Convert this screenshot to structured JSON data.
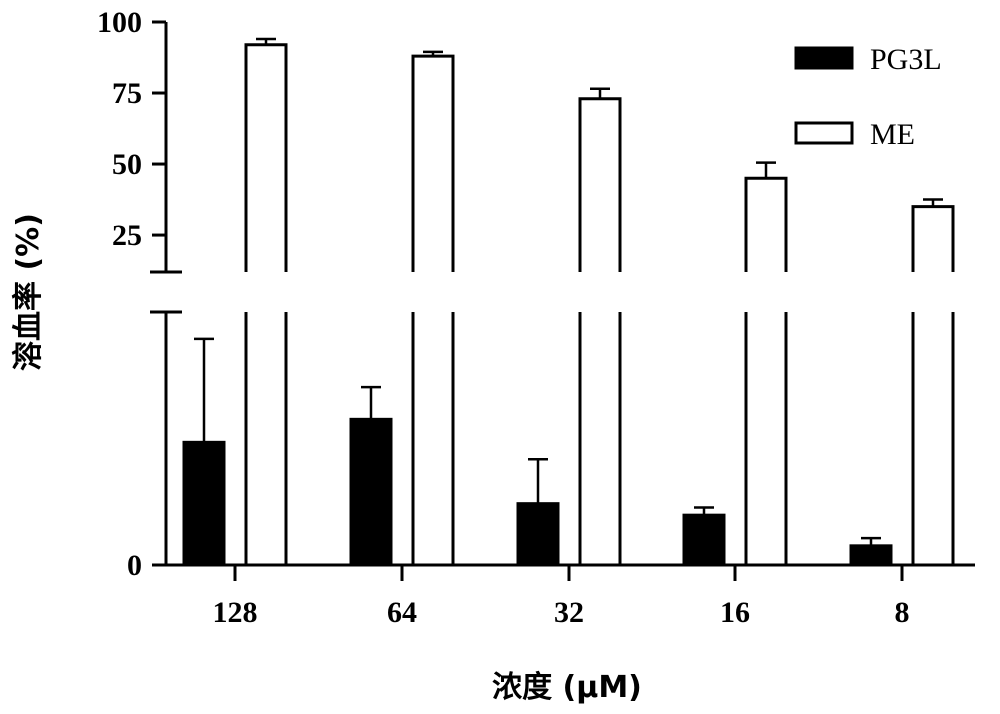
{
  "chart_data": {
    "type": "bar",
    "title": "",
    "xlabel": "浓度 (μM)",
    "ylabel": "溶血率 (%)",
    "categories": [
      "128",
      "64",
      "32",
      "16",
      "8"
    ],
    "y_ticks": [
      "100",
      "75",
      "50",
      "25",
      "0"
    ],
    "upper_segment_ylim": [
      12,
      100
    ],
    "lower_segment_ylim": [
      0,
      3.3
    ],
    "axis_break": true,
    "legend": {
      "placement": "top-right"
    },
    "grid": false,
    "series": [
      {
        "name": "PG3L",
        "fill": "#000000",
        "values": [
          1.6,
          1.9,
          0.8,
          0.65,
          0.25
        ],
        "errors": [
          1.35,
          0.42,
          0.58,
          0.1,
          0.1
        ]
      },
      {
        "name": "ME",
        "fill": "#ffffff",
        "values": [
          92,
          88,
          73,
          45,
          35
        ],
        "errors": [
          2,
          1.5,
          3.5,
          5.5,
          2.5
        ]
      }
    ]
  }
}
